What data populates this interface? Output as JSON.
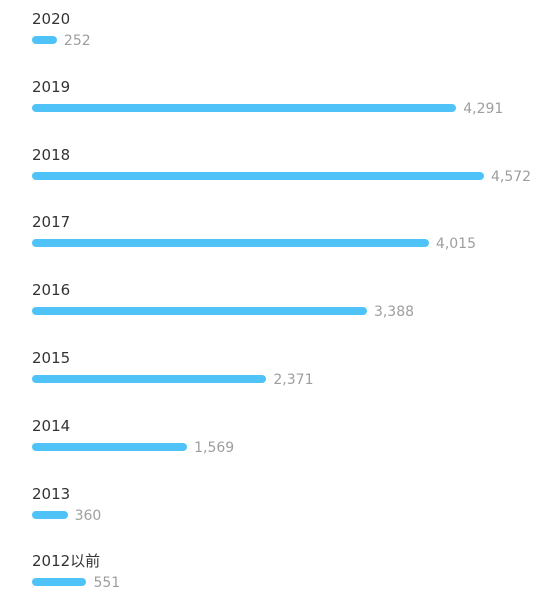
{
  "chart_data": {
    "type": "bar",
    "orientation": "horizontal",
    "title": "",
    "xlabel": "",
    "ylabel": "",
    "categories": [
      "2020",
      "2019",
      "2018",
      "2017",
      "2016",
      "2015",
      "2014",
      "2013",
      "2012以前"
    ],
    "values": [
      252,
      4291,
      4572,
      4015,
      3388,
      2371,
      1569,
      360,
      551
    ],
    "value_labels": [
      "252",
      "4,291",
      "4,572",
      "4,015",
      "3,388",
      "2,371",
      "1,569",
      "360",
      "551"
    ],
    "grid": false,
    "legend": "none",
    "bar_color": "#4fc3f7"
  }
}
